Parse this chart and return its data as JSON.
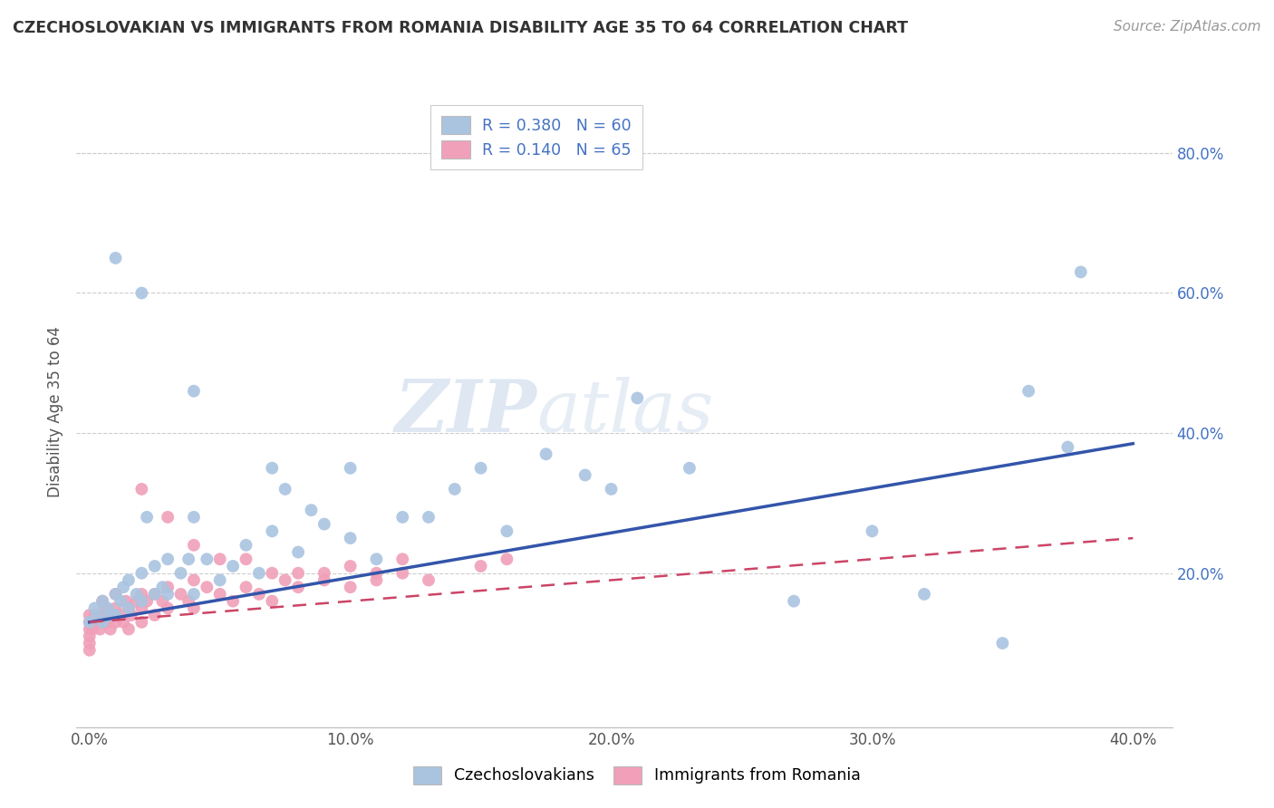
{
  "title": "CZECHOSLOVAKIAN VS IMMIGRANTS FROM ROMANIA DISABILITY AGE 35 TO 64 CORRELATION CHART",
  "source_text": "Source: ZipAtlas.com",
  "ylabel": "Disability Age 35 to 64",
  "xlim": [
    -0.005,
    0.415
  ],
  "ylim": [
    -0.02,
    0.88
  ],
  "xtick_labels": [
    "0.0%",
    "",
    "10.0%",
    "",
    "20.0%",
    "",
    "30.0%",
    "",
    "40.0%"
  ],
  "xtick_values": [
    0.0,
    0.05,
    0.1,
    0.15,
    0.2,
    0.25,
    0.3,
    0.35,
    0.4
  ],
  "ytick_labels": [
    "20.0%",
    "40.0%",
    "60.0%",
    "80.0%"
  ],
  "ytick_values": [
    0.2,
    0.4,
    0.6,
    0.8
  ],
  "legend_blue_label": "Czechoslovakians",
  "legend_pink_label": "Immigrants from Romania",
  "R_blue": 0.38,
  "N_blue": 60,
  "R_pink": 0.14,
  "N_pink": 65,
  "blue_color": "#aac4e0",
  "pink_color": "#f0a0b8",
  "blue_line_color": "#3355aa",
  "pink_line_color": "#cc4466",
  "watermark_zip": "ZIP",
  "watermark_atlas": "atlas",
  "background_color": "#ffffff",
  "grid_color": "#cccccc",
  "blue_scatter_x": [
    0.0,
    0.002,
    0.003,
    0.005,
    0.005,
    0.007,
    0.008,
    0.01,
    0.01,
    0.012,
    0.013,
    0.015,
    0.015,
    0.018,
    0.02,
    0.02,
    0.022,
    0.025,
    0.025,
    0.028,
    0.03,
    0.03,
    0.035,
    0.038,
    0.04,
    0.04,
    0.045,
    0.05,
    0.055,
    0.06,
    0.065,
    0.07,
    0.075,
    0.08,
    0.085,
    0.09,
    0.1,
    0.1,
    0.11,
    0.12,
    0.13,
    0.14,
    0.15,
    0.16,
    0.175,
    0.19,
    0.2,
    0.21,
    0.23,
    0.27,
    0.3,
    0.32,
    0.35,
    0.36,
    0.375,
    0.38,
    0.01,
    0.02,
    0.04,
    0.07
  ],
  "blue_scatter_y": [
    0.13,
    0.15,
    0.14,
    0.13,
    0.16,
    0.15,
    0.14,
    0.14,
    0.17,
    0.16,
    0.18,
    0.15,
    0.19,
    0.17,
    0.16,
    0.2,
    0.28,
    0.17,
    0.21,
    0.18,
    0.17,
    0.22,
    0.2,
    0.22,
    0.17,
    0.28,
    0.22,
    0.19,
    0.21,
    0.24,
    0.2,
    0.26,
    0.32,
    0.23,
    0.29,
    0.27,
    0.25,
    0.35,
    0.22,
    0.28,
    0.28,
    0.32,
    0.35,
    0.26,
    0.37,
    0.34,
    0.32,
    0.45,
    0.35,
    0.16,
    0.26,
    0.17,
    0.1,
    0.46,
    0.38,
    0.63,
    0.65,
    0.6,
    0.46,
    0.35
  ],
  "pink_scatter_x": [
    0.0,
    0.0,
    0.0,
    0.0,
    0.0,
    0.0,
    0.001,
    0.002,
    0.003,
    0.004,
    0.005,
    0.005,
    0.006,
    0.007,
    0.008,
    0.009,
    0.01,
    0.01,
    0.01,
    0.012,
    0.013,
    0.014,
    0.015,
    0.015,
    0.016,
    0.018,
    0.02,
    0.02,
    0.02,
    0.022,
    0.025,
    0.025,
    0.028,
    0.03,
    0.03,
    0.035,
    0.038,
    0.04,
    0.04,
    0.045,
    0.05,
    0.055,
    0.06,
    0.065,
    0.07,
    0.075,
    0.08,
    0.09,
    0.1,
    0.11,
    0.12,
    0.13,
    0.15,
    0.16,
    0.02,
    0.03,
    0.04,
    0.05,
    0.06,
    0.07,
    0.08,
    0.09,
    0.1,
    0.11,
    0.12
  ],
  "pink_scatter_y": [
    0.12,
    0.13,
    0.14,
    0.11,
    0.1,
    0.09,
    0.12,
    0.14,
    0.13,
    0.12,
    0.14,
    0.16,
    0.15,
    0.13,
    0.12,
    0.14,
    0.13,
    0.15,
    0.17,
    0.14,
    0.13,
    0.16,
    0.15,
    0.12,
    0.14,
    0.16,
    0.15,
    0.13,
    0.17,
    0.16,
    0.14,
    0.17,
    0.16,
    0.15,
    0.18,
    0.17,
    0.16,
    0.15,
    0.19,
    0.18,
    0.17,
    0.16,
    0.18,
    0.17,
    0.16,
    0.19,
    0.18,
    0.2,
    0.18,
    0.19,
    0.2,
    0.19,
    0.21,
    0.22,
    0.32,
    0.28,
    0.24,
    0.22,
    0.22,
    0.2,
    0.2,
    0.19,
    0.21,
    0.2,
    0.22
  ]
}
